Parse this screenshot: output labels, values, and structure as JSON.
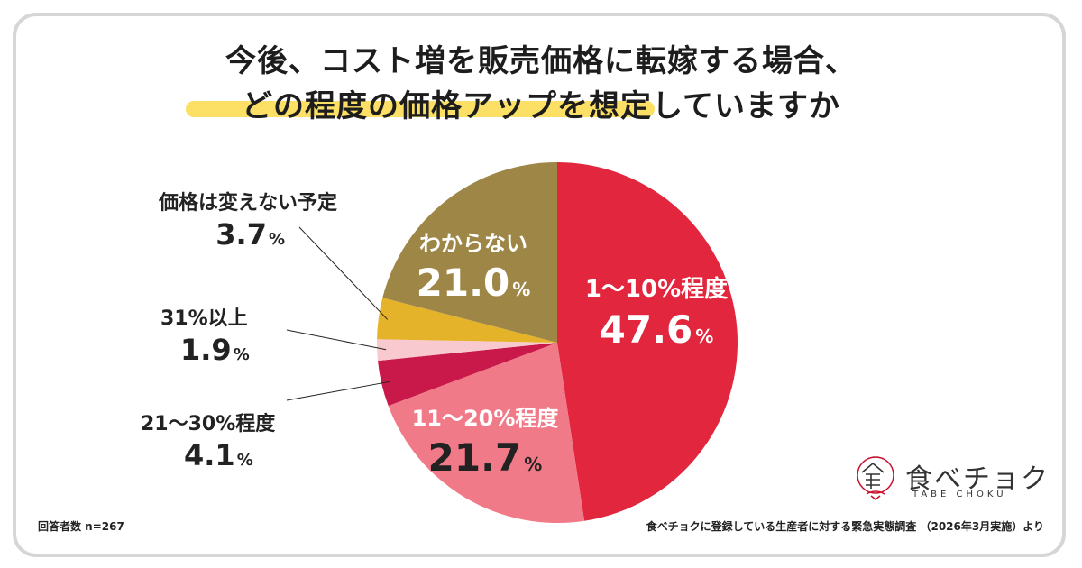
{
  "title": {
    "line1": "今後、コスト増を販売価格に転嫁する場合、",
    "line2": "どの程度の価格アップを想定していますか"
  },
  "colors": {
    "slice_1_10": "#e1263d",
    "slice_11_20": "#f17a88",
    "slice_21_30": "#c9184a",
    "slice_31": "#f8c9ce",
    "slice_no_change": "#e5b32a",
    "slice_unknown": "#9d8646",
    "highlight": "#fbe065"
  },
  "chart_data": {
    "type": "pie",
    "title": "今後、コスト増を販売価格に転嫁する場合、どの程度の価格アップを想定していますか",
    "unit": "%",
    "slices": [
      {
        "label": "1〜10%程度",
        "value": 47.6,
        "value_text": "47.6"
      },
      {
        "label": "11〜20%程度",
        "value": 21.7,
        "value_text": "21.7"
      },
      {
        "label": "21〜30%程度",
        "value": 4.1,
        "value_text": "4.1"
      },
      {
        "label": "31%以上",
        "value": 1.9,
        "value_text": "1.9"
      },
      {
        "label": "価格は変えない予定",
        "value": 3.7,
        "value_text": "3.7"
      },
      {
        "label": "わからない",
        "value": 21.0,
        "value_text": "21.0"
      }
    ]
  },
  "footer": {
    "respondents": "回答者数 n=267",
    "source": "食べチョクに登録している生産者に対する緊急実態調査 （2026年3月実施）より"
  },
  "brand": {
    "name_jp": "食べチョク",
    "name_en": "TABE CHOKU"
  }
}
